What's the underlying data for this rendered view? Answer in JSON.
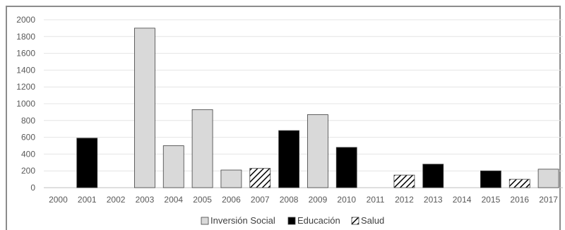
{
  "chart_data": {
    "type": "bar",
    "categories": [
      "2000",
      "2001",
      "2002",
      "2003",
      "2004",
      "2005",
      "2006",
      "2007",
      "2008",
      "2009",
      "2010",
      "2011",
      "2012",
      "2013",
      "2014",
      "2015",
      "2016",
      "2017"
    ],
    "series": [
      {
        "name": "Inversión Social",
        "color": "#d9d9d9",
        "pattern": "solid",
        "values": [
          null,
          null,
          null,
          1900,
          500,
          930,
          210,
          null,
          null,
          870,
          null,
          null,
          null,
          null,
          null,
          null,
          null,
          220
        ]
      },
      {
        "name": "Educación",
        "color": "#000000",
        "pattern": "solid",
        "values": [
          null,
          590,
          null,
          null,
          null,
          null,
          null,
          null,
          680,
          null,
          480,
          null,
          null,
          280,
          null,
          200,
          null,
          null
        ]
      },
      {
        "name": "Salud",
        "color": "#000000",
        "pattern": "diagonal-hatch",
        "values": [
          null,
          null,
          null,
          null,
          null,
          null,
          null,
          230,
          null,
          null,
          null,
          null,
          150,
          null,
          null,
          null,
          100,
          null
        ]
      }
    ],
    "ylim": [
      0,
      2000
    ],
    "yticks": [
      0,
      200,
      400,
      600,
      800,
      1000,
      1200,
      1400,
      1600,
      1800,
      2000
    ],
    "grid": true,
    "legend_position": "bottom"
  }
}
